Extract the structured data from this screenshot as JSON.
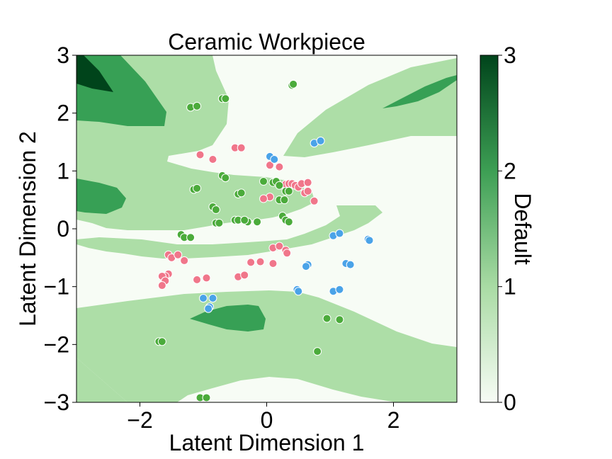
{
  "chart_data": {
    "type": "scatter",
    "title": "Ceramic Workpiece",
    "xlabel": "Latent Dimension 1",
    "ylabel": "Latent Dimension 2",
    "xlim": [
      -3,
      3
    ],
    "ylim": [
      -3,
      3
    ],
    "xticks": [
      -2,
      0,
      2
    ],
    "yticks": [
      -3,
      -2,
      -1,
      0,
      1,
      2,
      3
    ],
    "xtick_labels": [
      "−2",
      "0",
      "2"
    ],
    "ytick_labels": [
      "−3",
      "−2",
      "−1",
      "0",
      "1",
      "2",
      "3"
    ],
    "grid": false,
    "legend": "none",
    "colorbar": {
      "label": "Default",
      "range": [
        0,
        3
      ],
      "ticks": [
        0,
        1,
        2,
        3
      ],
      "colors": [
        "#f7fcf5",
        "#a9dba4",
        "#3d9f54",
        "#00441b"
      ]
    },
    "background_levels": {
      "level_colors": [
        "#f7fcf5",
        "#addea7",
        "#37a055",
        "#00441b"
      ]
    },
    "series": [
      {
        "color": "#f0768a",
        "points": [
          [
            -1.05,
            1.28
          ],
          [
            -0.85,
            1.2
          ],
          [
            -0.5,
            1.4
          ],
          [
            -0.4,
            1.4
          ],
          [
            0.05,
            1.1
          ],
          [
            0.2,
            1.07
          ],
          [
            0.3,
            0.77
          ],
          [
            0.35,
            0.78
          ],
          [
            0.4,
            0.78
          ],
          [
            0.45,
            0.75
          ],
          [
            0.5,
            0.72
          ],
          [
            0.55,
            0.78
          ],
          [
            0.6,
            0.62
          ],
          [
            0.65,
            0.8
          ],
          [
            0.65,
            0.65
          ],
          [
            0.75,
            0.48
          ],
          [
            0.05,
            0.55
          ],
          [
            -0.05,
            0.52
          ],
          [
            0.1,
            -0.33
          ],
          [
            0.2,
            -0.3
          ],
          [
            0.3,
            -0.37
          ],
          [
            0.32,
            -0.42
          ],
          [
            0.1,
            -0.6
          ],
          [
            -0.25,
            -0.58
          ],
          [
            -0.1,
            -0.57
          ],
          [
            -0.45,
            -0.83
          ],
          [
            -0.35,
            -0.8
          ],
          [
            -1.55,
            -0.45
          ],
          [
            -1.5,
            -0.5
          ],
          [
            -1.4,
            -0.45
          ],
          [
            -1.3,
            -0.55
          ],
          [
            -1.55,
            -0.78
          ],
          [
            -1.6,
            -0.82
          ],
          [
            -1.65,
            -0.82
          ],
          [
            -1.6,
            -0.9
          ],
          [
            -1.65,
            -0.98
          ],
          [
            -1.1,
            -0.88
          ],
          [
            -0.95,
            -0.85
          ]
        ]
      },
      {
        "color": "#4bab3b",
        "points": [
          [
            -0.7,
            2.25
          ],
          [
            -0.65,
            2.25
          ],
          [
            -1.2,
            2.1
          ],
          [
            -1.1,
            2.12
          ],
          [
            0.4,
            2.48
          ],
          [
            0.42,
            2.5
          ],
          [
            -0.7,
            0.92
          ],
          [
            -0.65,
            0.88
          ],
          [
            -0.45,
            0.6
          ],
          [
            -0.4,
            0.62
          ],
          [
            -1.15,
            0.68
          ],
          [
            -1.1,
            0.7
          ],
          [
            -0.85,
            0.38
          ],
          [
            -0.8,
            0.33
          ],
          [
            -0.8,
            0.1
          ],
          [
            -0.75,
            0.1
          ],
          [
            -0.5,
            0.15
          ],
          [
            -0.45,
            0.15
          ],
          [
            -0.3,
            0.12
          ],
          [
            -0.15,
            0.12
          ],
          [
            -0.35,
            0.15
          ],
          [
            -1.35,
            -0.1
          ],
          [
            -1.3,
            -0.15
          ],
          [
            -1.2,
            -0.15
          ],
          [
            -0.05,
            0.82
          ],
          [
            0.1,
            0.8
          ],
          [
            0.15,
            0.82
          ],
          [
            0.2,
            0.75
          ],
          [
            0.3,
            0.65
          ],
          [
            0.35,
            0.65
          ],
          [
            0.2,
            0.5
          ],
          [
            0.28,
            0.5
          ],
          [
            0.25,
            0.22
          ],
          [
            0.3,
            0.15
          ],
          [
            0.35,
            0.12
          ],
          [
            -1.7,
            -1.95
          ],
          [
            -1.65,
            -1.95
          ],
          [
            -1.05,
            -2.92
          ],
          [
            -0.95,
            -2.92
          ],
          [
            0.95,
            -1.55
          ],
          [
            1.15,
            -1.57
          ],
          [
            0.8,
            -2.12
          ]
        ]
      },
      {
        "color": "#4aa3e8",
        "points": [
          [
            0.05,
            1.25
          ],
          [
            0.12,
            1.2
          ],
          [
            0.75,
            1.48
          ],
          [
            0.85,
            1.52
          ],
          [
            1.05,
            -0.12
          ],
          [
            1.15,
            -0.08
          ],
          [
            1.6,
            -0.18
          ],
          [
            1.62,
            -0.2
          ],
          [
            1.25,
            -0.6
          ],
          [
            1.32,
            -0.62
          ],
          [
            0.65,
            -0.62
          ],
          [
            0.62,
            -0.65
          ],
          [
            0.48,
            -1.05
          ],
          [
            0.5,
            -1.08
          ],
          [
            1.05,
            -1.08
          ],
          [
            1.15,
            -1.05
          ],
          [
            -1.0,
            -1.2
          ],
          [
            -0.85,
            -1.2
          ],
          [
            -0.9,
            -1.35
          ],
          [
            -0.92,
            -1.38
          ]
        ]
      }
    ]
  }
}
